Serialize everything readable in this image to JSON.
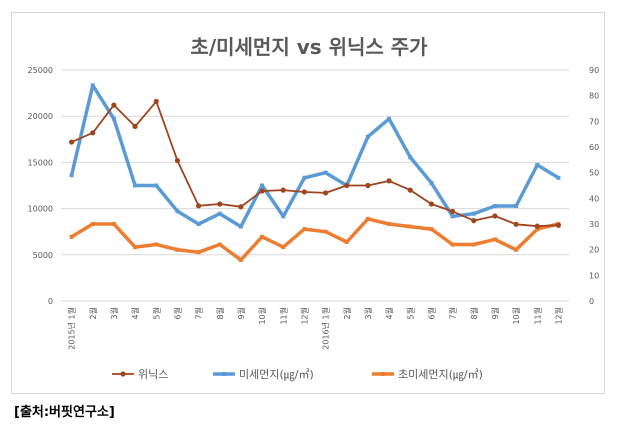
{
  "source": "[출처:버핏연구소]",
  "colors": {
    "winix": "#a0461e",
    "pm10": "#5b9bd5",
    "pm25": "#ed7d31",
    "grid": "#d9d9d9",
    "text": "#595959"
  },
  "chart_data": {
    "type": "line",
    "title": "초/미세먼지 vs 위닉스 주가",
    "x": [
      "2015년 1월",
      "2월",
      "3월",
      "4월",
      "5월",
      "6월",
      "7월",
      "8월",
      "9월",
      "10월",
      "11월",
      "12월",
      "2016년 1월",
      "2월",
      "3월",
      "4월",
      "5월",
      "6월",
      "7월",
      "8월",
      "9월",
      "10월",
      "11월",
      "12월"
    ],
    "x_tick_labels": [
      "2015년 1월",
      "2월",
      "3월",
      "4월",
      "5월",
      "6월",
      "7월",
      "8월",
      "9월",
      "10월",
      "11월",
      "12월",
      "2016년 1월",
      "2월",
      "3월",
      "4월",
      "5월",
      "6월",
      "7월",
      "8월",
      "9월",
      "10월",
      "11월",
      "12월"
    ],
    "y_left": {
      "lim": [
        0,
        25000
      ],
      "ticks": [
        0,
        5000,
        10000,
        15000,
        20000,
        25000
      ]
    },
    "y_right": {
      "lim": [
        0,
        90
      ],
      "ticks": [
        0,
        10,
        20,
        30,
        40,
        50,
        60,
        70,
        80,
        90
      ]
    },
    "grid": true,
    "legend": "bottom",
    "series": [
      {
        "name": "위닉스",
        "axis": "left",
        "marker": "circle",
        "values": [
          17200,
          18200,
          21200,
          18900,
          21600,
          15200,
          10300,
          10500,
          10200,
          11900,
          12000,
          11800,
          11700,
          12500,
          12500,
          13000,
          12000,
          10500,
          9700,
          8700,
          9200,
          8300,
          8100,
          8200
        ]
      },
      {
        "name": "미세먼지(㎍/㎥)",
        "axis": "right",
        "marker": "square",
        "values": [
          49,
          84,
          71,
          45,
          45,
          35,
          30,
          34,
          29,
          45,
          33,
          48,
          50,
          45,
          64,
          71,
          56,
          46,
          33,
          34,
          37,
          37,
          53,
          48
        ]
      },
      {
        "name": "초미세먼지(㎍/㎥)",
        "axis": "right",
        "marker": "square",
        "values": [
          25,
          30,
          30,
          21,
          22,
          20,
          19,
          22,
          16,
          25,
          21,
          28,
          27,
          23,
          32,
          30,
          29,
          28,
          22,
          22,
          24,
          20,
          28,
          30
        ]
      }
    ]
  }
}
